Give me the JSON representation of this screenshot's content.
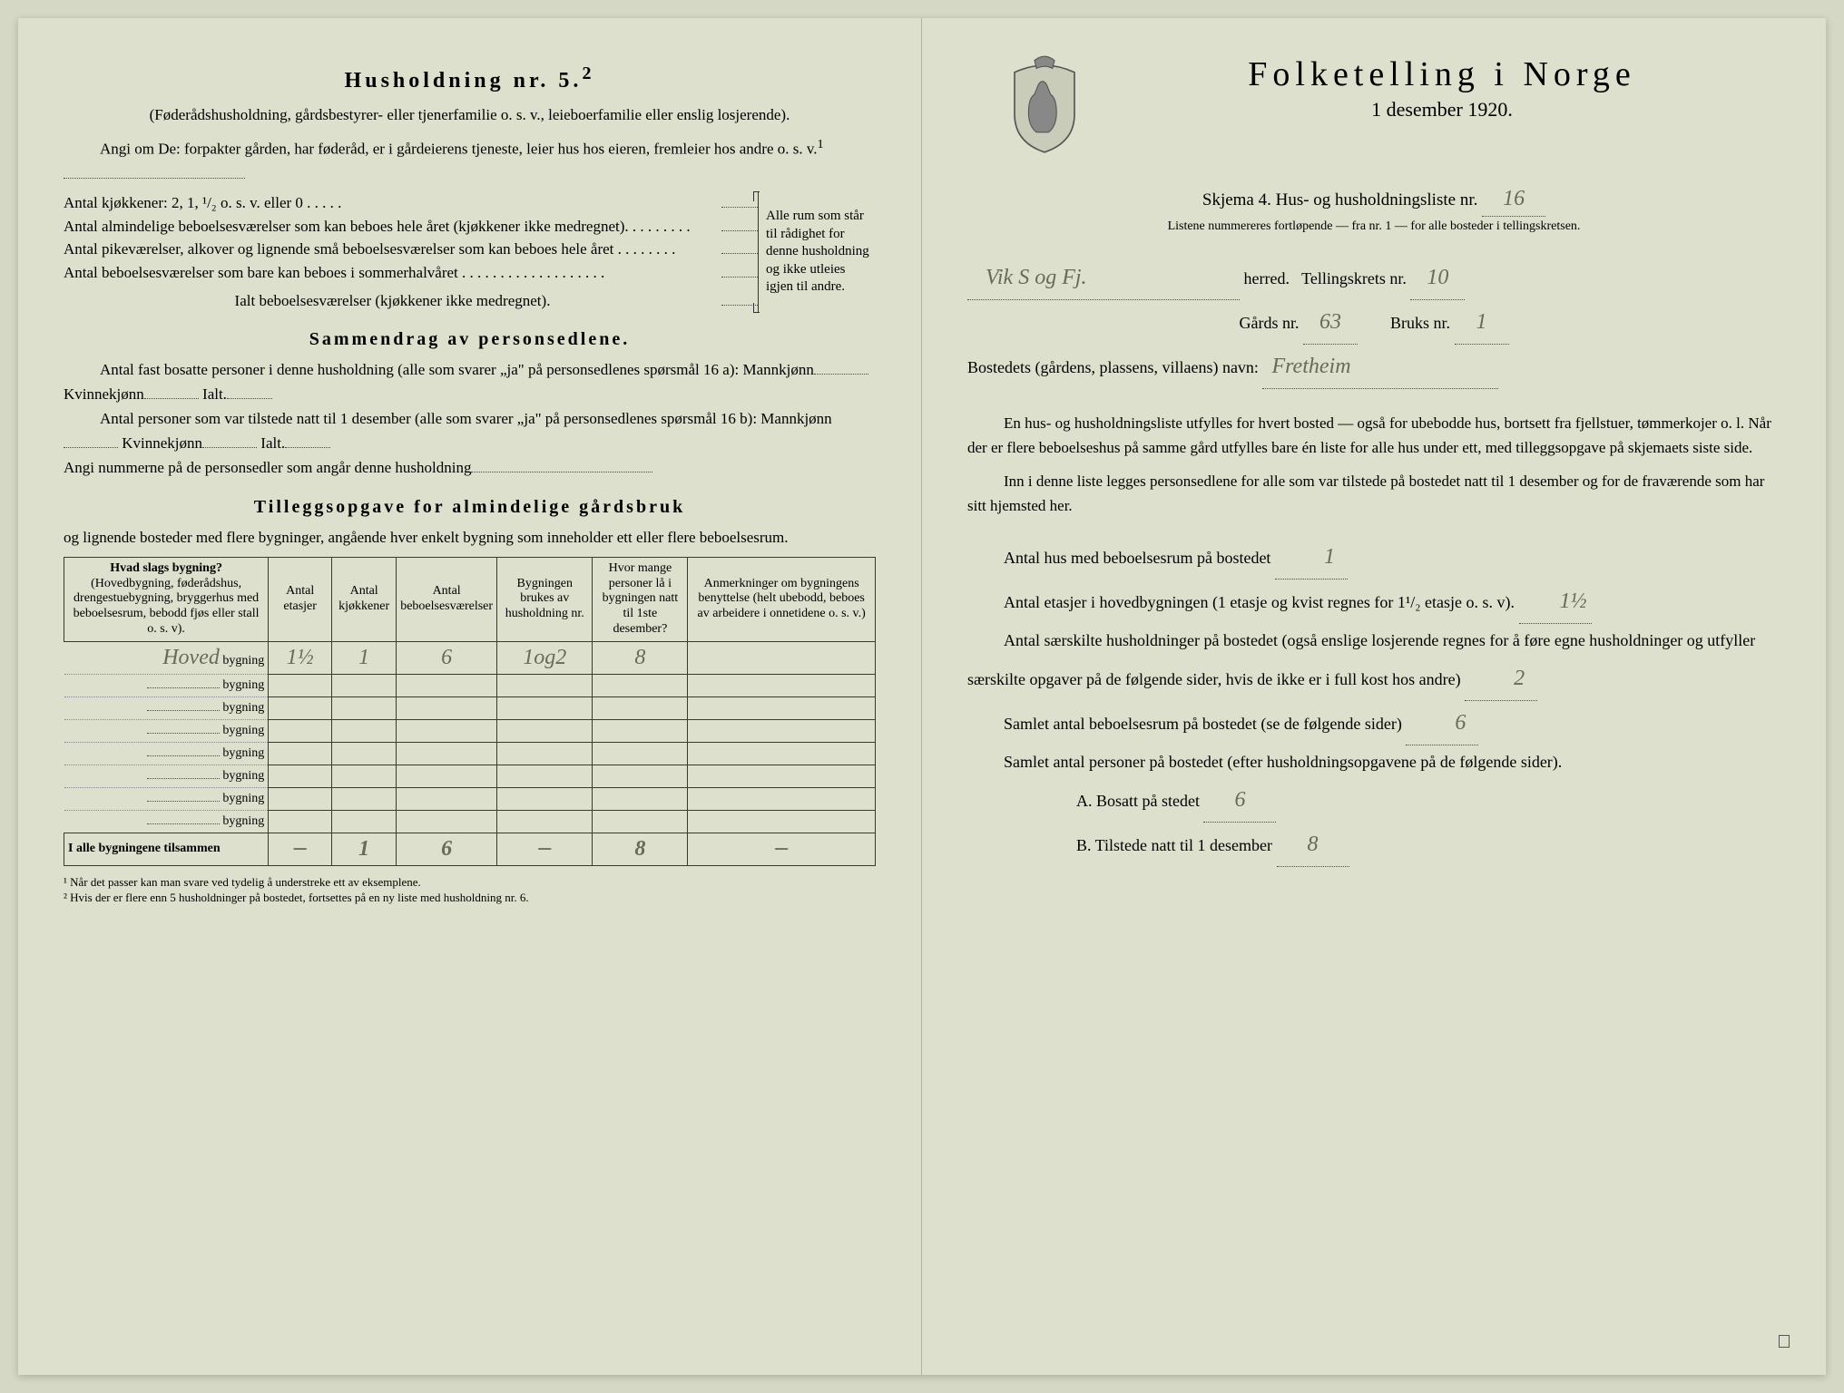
{
  "left": {
    "household_title": "Husholdning nr. 5.",
    "household_sup": "2",
    "household_sub": "(Føderådshusholdning, gårdsbestyrer- eller tjenerfamilie o. s. v., leieboerfamilie eller enslig losjerende).",
    "angi_om": "Angi om De: forpakter gården, har føderåd, er i gårdeierens tjeneste, leier hus hos eieren, fremleier hos andre o. s. v.",
    "kitchens_label": "Antal kjøkkener: 2, 1, ¹/₂ o. s. v. eller 0 . . . . .",
    "rows": [
      "Antal almindelige beboelsesværelser som kan beboes hele året (kjøkkener ikke medregnet). . . . . . . . .",
      "Antal pikeværelser, alkover og lignende små beboelsesværelser som kan beboes hele året . . . . . . . .",
      "Antal beboelsesværelser som bare kan beboes i sommerhalvåret . . . . . . . . . . . . . . . . . . ."
    ],
    "ialt_row": "Ialt beboelsesværelser  (kjøkkener ikke medregnet).",
    "bracket_text": "Alle rum som står til rådighet for denne husholdning og ikke utleies igjen til andre.",
    "sammendrag_title": "Sammendrag av personsedlene.",
    "sammen_1": "Antal fast bosatte personer i denne husholdning (alle som svarer „ja\" på personsedlenes spørsmål 16 a): Mannkjønn",
    "sammen_2": "Antal personer som var tilstede natt til 1 desember (alle som svarer „ja\" på personsedlenes spørsmål 16 b): Mannkjønn",
    "kvinne_label": "Kvinnekjønn",
    "ialt_label": "Ialt.",
    "angi_num": "Angi nummerne på de personsedler som angår denne husholdning",
    "tillegg_title": "Tilleggsopgave for almindelige gårdsbruk",
    "tillegg_sub": "og lignende bosteder med flere bygninger, angående hver enkelt bygning som inneholder ett eller flere beboelsesrum.",
    "table": {
      "headers": [
        "Hvad slags bygning?",
        "Antal etasjer",
        "Antal kjøkkener",
        "Antal beboelsesværelser",
        "Bygningen brukes av husholdning nr.",
        "Hvor mange personer lå i bygningen natt til 1ste desember?",
        "Anmerkninger om bygningens benyttelse (helt ubebodd, beboes av arbeidere i onnetidene o. s. v.)"
      ],
      "header_sub": "(Hovedbygning, føderådshus, drengestuebygning, bryggerhus med beboelsesrum, bebodd fjøs eller stall o. s. v).",
      "row_prefix_hand": "Hoved",
      "row_suffix": "bygning",
      "data_row": [
        "1½",
        "1",
        "6",
        "1og2",
        "8",
        ""
      ],
      "empty_rows": 7,
      "total_label": "I alle bygningene tilsammen",
      "total_row": [
        "—",
        "1",
        "6",
        "—",
        "8",
        "—"
      ]
    },
    "footnote1": "¹ Når det passer kan man svare ved tydelig å understreke ett av eksemplene.",
    "footnote2": "² Hvis der er flere enn 5 husholdninger på bostedet, fortsettes på en ny liste med husholdning nr. 6."
  },
  "right": {
    "title": "Folketelling i Norge",
    "date": "1 desember 1920.",
    "skjema_label": "Skjema 4.  Hus- og husholdningsliste nr.",
    "skjema_nr": "16",
    "listene_note": "Listene nummereres fortløpende — fra nr. 1 — for alle bosteder i tellingskretsen.",
    "herred_hand": "Vik S og Fj.",
    "herred_label": "herred.",
    "krets_label": "Tellingskrets nr.",
    "krets_nr": "10",
    "gards_label": "Gårds nr.",
    "gards_nr": "63",
    "bruks_label": "Bruks nr.",
    "bruks_nr": "1",
    "bosted_label": "Bostedets (gårdens, plassens, villaens) navn:",
    "bosted_hand": "Fretheim",
    "para1": "En hus- og husholdningsliste utfylles for hvert bosted — også for ubebodde hus, bortsett fra fjellstuer, tømmerkojer o. l.  Når der er flere beboelseshus på samme gård utfylles bare én liste for alle hus under ett, med tilleggsopgave på skjemaets siste side.",
    "para2": "Inn i denne liste legges personsedlene for alle som var tilstede på bostedet natt til 1 desember og for de fraværende som har sitt hjemsted her.",
    "line_hus": "Antal hus med beboelsesrum på bostedet",
    "val_hus": "1",
    "line_etasjer_a": "Antal etasjer i hovedbygningen (1 etasje og kvist regnes for 1¹/₂ etasje o. s. v).",
    "val_etasjer": "1½",
    "line_hush": "Antal særskilte husholdninger på bostedet (også enslige losjerende regnes for å føre egne husholdninger og utfyller særskilte opgaver på de følgende sider, hvis de ikke er i full kost hos andre)",
    "val_hush": "2",
    "line_rum": "Samlet antal beboelsesrum på bostedet (se de følgende sider)",
    "val_rum": "6",
    "line_personer": "Samlet antal personer på bostedet (efter husholdningsopgavene på de følgende sider).",
    "line_A": "A.  Bosatt på stedet",
    "val_A": "6",
    "line_B": "B.  Tilstede natt til 1 desember",
    "val_B": "8"
  }
}
